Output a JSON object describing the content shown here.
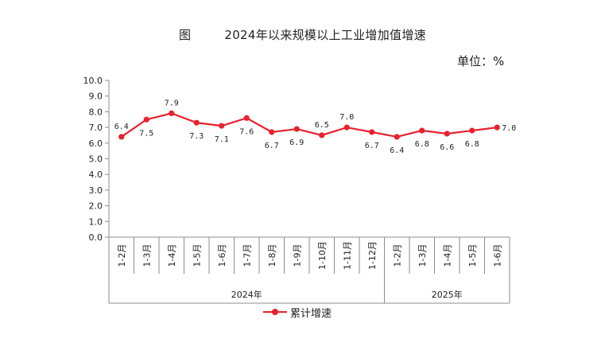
{
  "chart_data": {
    "type": "line",
    "title_prefix": "图",
    "title": "2024年以来规模以上工业增加值增速",
    "unit_label": "单位：%",
    "categories": [
      "1-2月",
      "1-3月",
      "1-4月",
      "1-5月",
      "1-6月",
      "1-7月",
      "1-8月",
      "1-9月",
      "1-10月",
      "1-11月",
      "1-12月",
      "1-2月",
      "1-3月",
      "1-4月",
      "1-5月",
      "1-6月"
    ],
    "groups": [
      {
        "label": "2024年",
        "count": 11
      },
      {
        "label": "2025年",
        "count": 5
      }
    ],
    "series": [
      {
        "name": "累计增速",
        "color": "#e8212e",
        "values": [
          6.4,
          7.5,
          7.9,
          7.3,
          7.1,
          7.6,
          6.7,
          6.9,
          6.5,
          7.0,
          6.7,
          6.4,
          6.8,
          6.6,
          6.8,
          7.0
        ]
      }
    ],
    "data_labels": [
      "6.4",
      "7.5",
      "7.9",
      "7.3",
      "7.1",
      "7.6",
      "6.7",
      "6.9",
      "6.5",
      "7.0",
      "6.7",
      "6.4",
      "6.8",
      "6.6",
      "6.8",
      "7.0"
    ],
    "yticks": [
      "0.0",
      "1.0",
      "2.0",
      "3.0",
      "4.0",
      "5.0",
      "6.0",
      "7.0",
      "8.0",
      "9.0",
      "10.0"
    ],
    "ylim": [
      0,
      10
    ],
    "grid": false,
    "legend_position": "bottom"
  }
}
